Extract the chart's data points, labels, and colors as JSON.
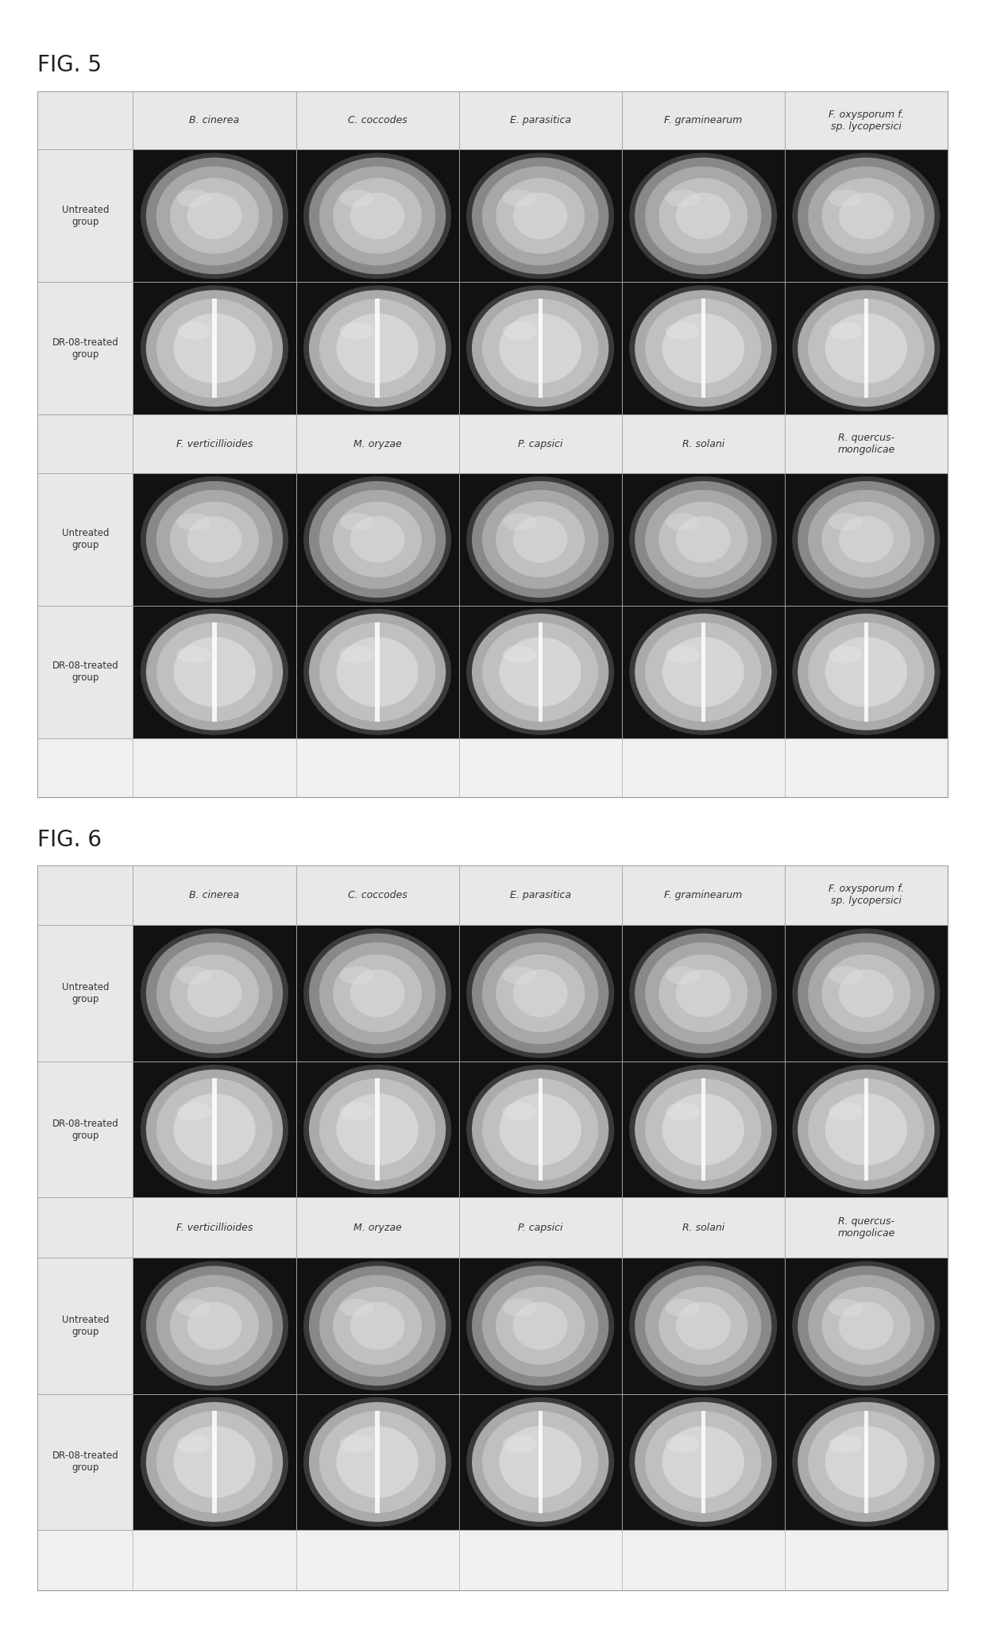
{
  "fig5_title": "FIG. 5",
  "fig6_title": "FIG. 6",
  "col_headers_top": [
    "B. cinerea",
    "C. coccodes",
    "E. parasitica",
    "F. graminearum",
    "F. oxysporum f.\nsp. lycopersici"
  ],
  "col_headers_bot": [
    "F. verticillioides",
    "M. oryzae",
    "P. capsici",
    "R. solani",
    "R. quercus-\nmongolicae"
  ],
  "row_label_untreated": "Untreated\ngroup",
  "row_label_treated": "DR-08-treated\ngroup",
  "bg_color": "#ffffff",
  "grid_color": "#aaaaaa",
  "header_fontsize": 9,
  "row_label_fontsize": 8.5,
  "fig_label_size": 20,
  "noise_seed": 42
}
